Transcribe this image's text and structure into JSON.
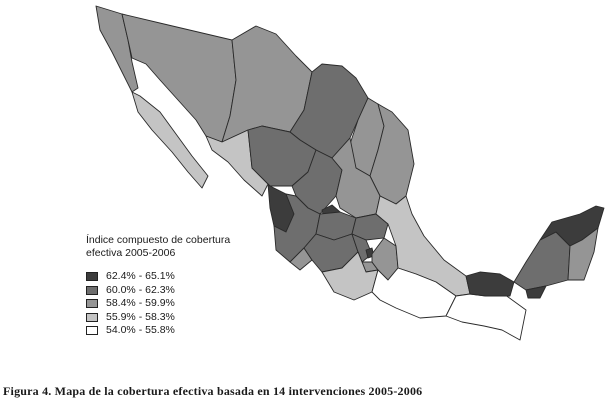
{
  "legend": {
    "title_line1": "Índice compuesto de cobertura",
    "title_line2": "efectiva 2005-2006",
    "classes": [
      {
        "label": "62.4% - 65.1%",
        "color": "#3c3c3c"
      },
      {
        "label": "60.0% - 62.3%",
        "color": "#6e6e6e"
      },
      {
        "label": "58.4% - 59.9%",
        "color": "#959595"
      },
      {
        "label": "55.9% - 58.3%",
        "color": "#c4c4c4"
      },
      {
        "label": "54.0% - 55.8%",
        "color": "#ffffff"
      }
    ]
  },
  "caption": "Figura 4. Mapa de la cobertura efectiva basada en 14 intervenciones 2005-2006"
}
